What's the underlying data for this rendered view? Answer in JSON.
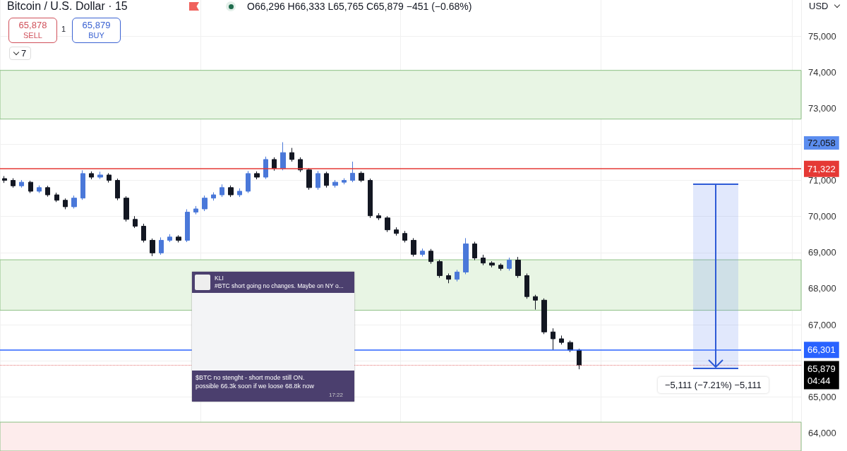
{
  "chart_data": {
    "type": "candlestick",
    "title": "Bitcoin / U.S. Dollar · 15",
    "subtitle": "O66,296 H66,333 L65,765 C65,879 −451 (−0.68%)",
    "categories": [
      null,
      null,
      null,
      null,
      null,
      null,
      null,
      null,
      null,
      null,
      null,
      null,
      null,
      null,
      null,
      null,
      null,
      null,
      null,
      null,
      null,
      null,
      null,
      null,
      null,
      null,
      null,
      null,
      null,
      null,
      null,
      null,
      null,
      null,
      null,
      null,
      null,
      null,
      null,
      null,
      null,
      null,
      null,
      null,
      null,
      null,
      null,
      null,
      null,
      null,
      null,
      null,
      null,
      null,
      null,
      null,
      null,
      null,
      null,
      null,
      null,
      null,
      null,
      null,
      null,
      null,
      null,
      null,
      null,
      null,
      null,
      null,
      null,
      null,
      null,
      null,
      null,
      null,
      null,
      null,
      null,
      null,
      null,
      null,
      null,
      null,
      null,
      null,
      null,
      null,
      null,
      null
    ],
    "ohlc": [
      [
        71050,
        71120,
        70930,
        71000
      ],
      [
        71000,
        71060,
        70800,
        70850
      ],
      [
        70850,
        71010,
        70800,
        70950
      ],
      [
        70950,
        70990,
        70650,
        70700
      ],
      [
        70700,
        70860,
        70650,
        70800
      ],
      [
        70800,
        70850,
        70550,
        70600
      ],
      [
        70600,
        70660,
        70400,
        70450
      ],
      [
        70450,
        70500,
        70200,
        70270
      ],
      [
        70270,
        70580,
        70220,
        70510
      ],
      [
        70510,
        71280,
        70460,
        71190
      ],
      [
        71190,
        71250,
        71030,
        71090
      ],
      [
        71090,
        71240,
        71040,
        71150
      ],
      [
        71150,
        71200,
        70940,
        71000
      ],
      [
        71000,
        71050,
        70450,
        70510
      ],
      [
        70510,
        70560,
        69860,
        69920
      ],
      [
        69920,
        70010,
        69680,
        69730
      ],
      [
        69730,
        69800,
        69280,
        69340
      ],
      [
        69340,
        69390,
        68900,
        68990
      ],
      [
        68990,
        69420,
        68940,
        69340
      ],
      [
        69340,
        69510,
        69290,
        69430
      ],
      [
        69430,
        69480,
        69280,
        69340
      ],
      [
        69340,
        70200,
        69290,
        70120
      ],
      [
        70120,
        70290,
        70060,
        70210
      ],
      [
        70210,
        70580,
        70150,
        70510
      ],
      [
        70510,
        70670,
        70440,
        70600
      ],
      [
        70600,
        70890,
        70540,
        70800
      ],
      [
        70800,
        70860,
        70540,
        70600
      ],
      [
        70600,
        70780,
        70540,
        70700
      ],
      [
        70700,
        71260,
        70650,
        71190
      ],
      [
        71190,
        71250,
        71030,
        71090
      ],
      [
        71090,
        71660,
        71040,
        71580
      ],
      [
        71580,
        71640,
        71270,
        71330
      ],
      [
        71330,
        72058,
        71280,
        71770
      ],
      [
        71770,
        71900,
        71520,
        71580
      ],
      [
        71580,
        71640,
        71230,
        71290
      ],
      [
        71290,
        71340,
        70740,
        70800
      ],
      [
        70800,
        71260,
        70740,
        71190
      ],
      [
        71190,
        71240,
        70800,
        70860
      ],
      [
        70860,
        71010,
        70800,
        70950
      ],
      [
        70950,
        71060,
        70890,
        71000
      ],
      [
        71000,
        71520,
        70950,
        71200
      ],
      [
        71200,
        71250,
        70950,
        71000
      ],
      [
        71000,
        71050,
        69960,
        70020
      ],
      [
        70020,
        70090,
        69900,
        69960
      ],
      [
        69960,
        70010,
        69570,
        69630
      ],
      [
        69630,
        69700,
        69470,
        69530
      ],
      [
        69530,
        69600,
        69280,
        69340
      ],
      [
        69340,
        69400,
        68890,
        68950
      ],
      [
        68950,
        69110,
        68890,
        69040
      ],
      [
        69040,
        69100,
        68690,
        68750
      ],
      [
        68750,
        68800,
        68300,
        68360
      ],
      [
        68360,
        68420,
        68150,
        68260
      ],
      [
        68260,
        68520,
        68200,
        68460
      ],
      [
        68460,
        69400,
        68400,
        69240
      ],
      [
        69240,
        69300,
        68790,
        68850
      ],
      [
        68850,
        68940,
        68650,
        68710
      ],
      [
        68710,
        68760,
        68590,
        68650
      ],
      [
        68650,
        68700,
        68500,
        68560
      ],
      [
        68560,
        68860,
        68500,
        68790
      ],
      [
        68790,
        68880,
        68300,
        68360
      ],
      [
        68360,
        68420,
        67720,
        67780
      ],
      [
        67780,
        67830,
        67420,
        67680
      ],
      [
        67680,
        67730,
        66740,
        66800
      ],
      [
        66800,
        66900,
        66300,
        66610
      ],
      [
        66610,
        66700,
        66450,
        66510
      ],
      [
        66510,
        66560,
        66240,
        66296
      ],
      [
        66296,
        66333,
        65765,
        65879
      ],
      null,
      null,
      null,
      null,
      null,
      null,
      null,
      null,
      null,
      null,
      null,
      null,
      null,
      null,
      null,
      null,
      null,
      null,
      null,
      null,
      null,
      null,
      null,
      null,
      null
    ],
    "colors": [
      "#131722",
      "#131722",
      "#4a78d9",
      "#131722",
      "#4a78d9",
      "#131722",
      "#131722",
      "#131722",
      "#4a78d9",
      "#4a78d9",
      "#131722",
      "#4a78d9",
      "#131722",
      "#131722",
      "#131722",
      "#131722",
      "#131722",
      "#131722",
      "#4a78d9",
      "#4a78d9",
      "#131722",
      "#4a78d9",
      "#4a78d9",
      "#4a78d9",
      "#4a78d9",
      "#4a78d9",
      "#131722",
      "#4a78d9",
      "#4a78d9",
      "#131722",
      "#4a78d9",
      "#131722",
      "#4a78d9",
      "#131722",
      "#131722",
      "#131722",
      "#4a78d9",
      "#131722",
      "#4a78d9",
      "#4a78d9",
      "#4a78d9",
      "#131722",
      "#131722",
      "#131722",
      "#131722",
      "#131722",
      "#131722",
      "#131722",
      "#4a78d9",
      "#131722",
      "#131722",
      "#131722",
      "#4a78d9",
      "#4a78d9",
      "#131722",
      "#131722",
      "#131722",
      "#131722",
      "#4a78d9",
      "#131722",
      "#131722",
      "#131722",
      "#131722",
      "#131722",
      "#131722",
      "#131722",
      "#131722",
      null,
      null,
      null,
      null,
      null,
      null,
      null,
      null,
      null,
      null,
      null,
      null,
      null,
      null,
      null,
      null,
      null,
      null,
      null,
      null,
      null,
      null,
      null,
      null,
      null
    ],
    "ylim": [
      63500,
      76000
    ],
    "yticks": [
      {
        "value": 64000,
        "label": "64,000"
      },
      {
        "value": 65000,
        "label": "65,000"
      },
      {
        "value": 66000,
        "label": null
      },
      {
        "value": 67000,
        "label": "67,000"
      },
      {
        "value": 68000,
        "label": "68,000"
      },
      {
        "value": 69000,
        "label": "69,000"
      },
      {
        "value": 70000,
        "label": "70,000"
      },
      {
        "value": 71000,
        "label": "71,000"
      },
      {
        "value": 72000,
        "label": null
      },
      {
        "value": 73000,
        "label": "73,000"
      },
      {
        "value": 74000,
        "label": "74,000"
      },
      {
        "value": 75000,
        "label": "75,000"
      }
    ],
    "ref_lines": [
      {
        "axis": "y",
        "value": 71322,
        "label": "71,322",
        "color": "#e53935",
        "line_style": "solid"
      },
      {
        "axis": "y",
        "value": 66301,
        "label": "66,301",
        "color": "#2962ff",
        "line_style": "solid"
      },
      {
        "axis": "y",
        "value": 65879,
        "label": "65,879",
        "color": "#e57373",
        "line_style": "dotted"
      }
    ],
    "bands": [
      {
        "axis": "y",
        "from": 72700,
        "to": 74050,
        "label": null,
        "color": "#e8f5e4"
      },
      {
        "axis": "y",
        "from": 67400,
        "to": 68800,
        "label": null,
        "color": "#e8f5e4"
      },
      {
        "axis": "y",
        "from": 63500,
        "to": 64300,
        "label": null,
        "color": "#fdecec"
      }
    ],
    "annotations": [
      "65,878",
      "SELL",
      "1",
      "65,879",
      "BUY",
      "7",
      "USD",
      "KLI",
      "#BTC short going no changes. Maybe on NY o...",
      "$BTC no stenght - short mode still ON. possible 66.3k soon if we loose 68.8k now",
      "17:22",
      "−5,111 (−7.21%) −5,111",
      "04:44",
      "72,058"
    ],
    "grid": true,
    "tick_labels": "y"
  }
}
